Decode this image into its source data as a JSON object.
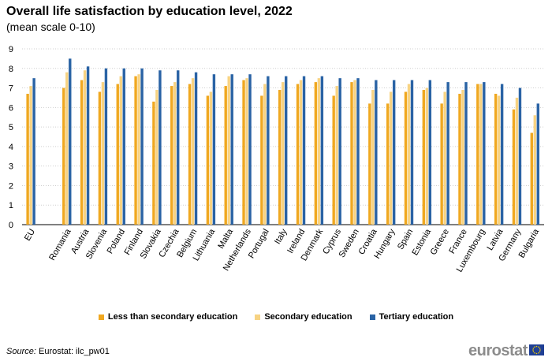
{
  "header": {
    "title": "Overall life satisfaction by education level, 2022",
    "subtitle": "(mean scale 0-10)"
  },
  "colors": {
    "less": "#f0a820",
    "secondary": "#f7d383",
    "tertiary": "#2a63a5",
    "grid": "#cfcfcf"
  },
  "chart_data": {
    "type": "bar",
    "ylim": [
      0,
      9
    ],
    "yticks": [
      "0",
      "1",
      "2",
      "3",
      "4",
      "5",
      "6",
      "7",
      "8",
      "9"
    ],
    "legend_position": "bottom",
    "grid": true,
    "categories": [
      "EU",
      "",
      "Romania",
      "Austria",
      "Slovenia",
      "Poland",
      "Finland",
      "Slovakia",
      "Czechia",
      "Belgium",
      "Lithuania",
      "Malta",
      "Netherlands",
      "Portugal",
      "Italy",
      "Ireland",
      "Denmark",
      "Cyprus",
      "Sweden",
      "Croatia",
      "Hungary",
      "Spain",
      "Estonia",
      "Greece",
      "France",
      "Luxembourg",
      "Latvia",
      "Germany",
      "Bulgaria"
    ],
    "series": [
      {
        "name": "Less than secondary education",
        "values": [
          6.7,
          null,
          7.0,
          7.4,
          6.8,
          7.2,
          7.6,
          6.3,
          7.1,
          7.2,
          6.6,
          7.1,
          7.4,
          6.6,
          6.9,
          7.2,
          7.3,
          6.6,
          7.3,
          6.2,
          6.2,
          6.8,
          6.9,
          6.2,
          6.7,
          7.2,
          6.7,
          5.9,
          4.7
        ]
      },
      {
        "name": "Secondary education",
        "values": [
          7.1,
          null,
          7.8,
          7.9,
          7.3,
          7.6,
          7.7,
          6.9,
          7.3,
          7.5,
          6.8,
          7.6,
          7.5,
          7.2,
          7.3,
          7.4,
          7.5,
          7.1,
          7.4,
          6.9,
          6.8,
          7.2,
          7.0,
          6.8,
          6.9,
          7.2,
          6.6,
          6.5,
          5.6
        ]
      },
      {
        "name": "Tertiary education",
        "values": [
          7.5,
          null,
          8.5,
          8.1,
          8.0,
          8.0,
          8.0,
          7.9,
          7.9,
          7.8,
          7.7,
          7.7,
          7.7,
          7.6,
          7.6,
          7.6,
          7.6,
          7.5,
          7.5,
          7.4,
          7.4,
          7.4,
          7.4,
          7.3,
          7.3,
          7.3,
          7.2,
          7.0,
          6.2
        ]
      }
    ]
  },
  "source": {
    "label": "Source:",
    "text": "Eurostat: ilc_pw01"
  },
  "brand": {
    "name": "eurostat"
  }
}
